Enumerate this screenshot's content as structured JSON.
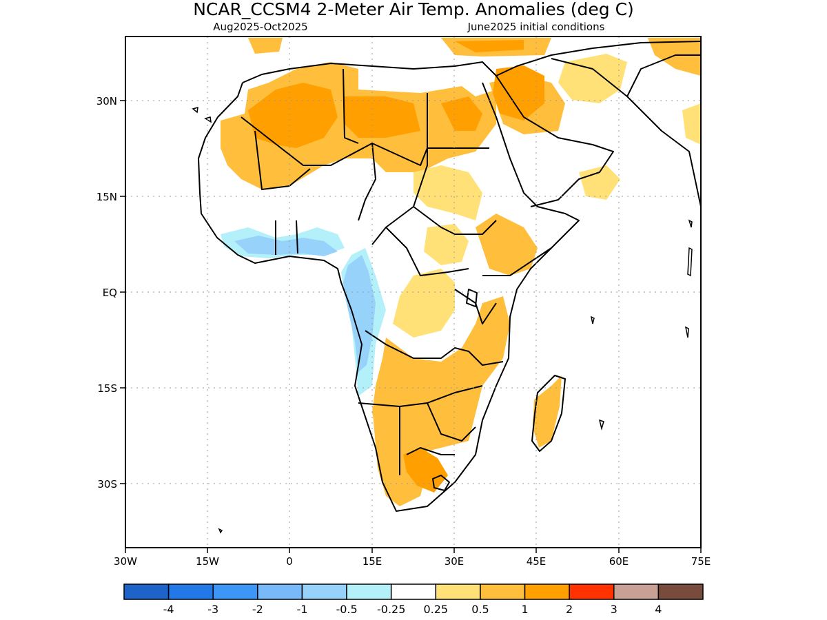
{
  "title": "NCAR_CCSM4 2-Meter Air Temp. Anomalies (deg C)",
  "subtitle_left": "Aug2025-Oct2025",
  "subtitle_right": "June2025 initial conditions",
  "axes": {
    "lat_ticks": [
      "30N",
      "15N",
      "EQ",
      "15S",
      "30S"
    ],
    "lon_ticks": [
      "30W",
      "15W",
      "0",
      "15E",
      "30E",
      "45E",
      "60E",
      "75E"
    ],
    "lon_range": [
      "30W",
      "75E"
    ],
    "lat_range": [
      "38S",
      "38N"
    ],
    "grid": "dotted"
  },
  "colorbar": {
    "colors": [
      "#1e64c8",
      "#2278e6",
      "#3c96f5",
      "#78b9fa",
      "#96d2fa",
      "#b4f0fa",
      "#ffffff",
      "#ffe178",
      "#ffbe3c",
      "#ffa000",
      "#ff3200",
      "#c8a096",
      "#784b3c"
    ],
    "labels": [
      "-4",
      "-3",
      "-2",
      "-1",
      "-0.5",
      "-0.25",
      "0.25",
      "0.5",
      "1",
      "2",
      "3",
      "4"
    ]
  },
  "chart_data": {
    "type": "heatmap",
    "title": "NCAR_CCSM4 2-Meter Air Temp. Anomalies (deg C)",
    "subtitle": "Aug2025-Oct2025 · June2025 initial conditions",
    "region": "Africa",
    "regions": [
      {
        "area": "Western Sahara / Mauritania / Mali",
        "anomaly_range": [
          0.5,
          2
        ]
      },
      {
        "area": "Algeria / Libya / Egypt",
        "anomaly_range": [
          0.5,
          2
        ]
      },
      {
        "area": "Middle East / Arabia",
        "anomaly_range": [
          0.25,
          2
        ]
      },
      {
        "area": "Iran / Afghanistan",
        "anomaly_range": [
          0.25,
          1
        ]
      },
      {
        "area": "Guinea Coast / West Africa coast",
        "anomaly_range": [
          -1,
          -0.25
        ]
      },
      {
        "area": "Gulf of Guinea / Gabon / Angola coast",
        "anomaly_range": [
          -1,
          -0.25
        ]
      },
      {
        "area": "Central Africa / DRC",
        "anomaly_range": [
          0.25,
          1
        ]
      },
      {
        "area": "East Africa / Horn",
        "anomaly_range": [
          0.25,
          1
        ]
      },
      {
        "area": "Southern Africa",
        "anomaly_range": [
          0.5,
          2
        ]
      },
      {
        "area": "Madagascar",
        "anomaly_range": [
          0.5,
          1
        ]
      }
    ]
  }
}
